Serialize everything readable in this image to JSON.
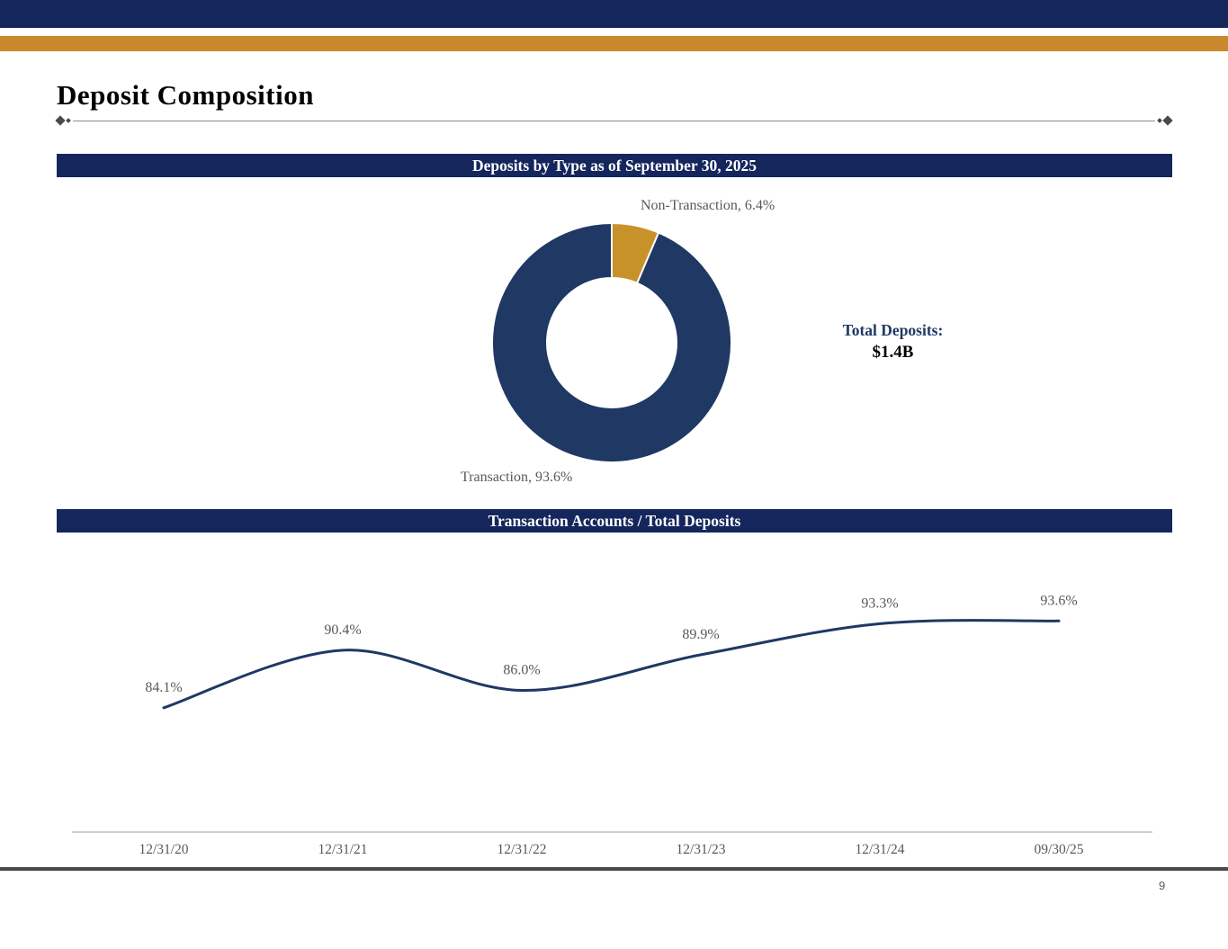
{
  "title": "Deposit Composition",
  "page": {
    "number": "9"
  },
  "sections": {
    "deposits_by_type_header": "Deposits by Type as of September 30, 2025",
    "transaction_ratio_header": "Transaction Accounts / Total Deposits"
  },
  "total_deposits": {
    "label": "Total Deposits:",
    "value": "$1.4B"
  },
  "colors": {
    "navy_bar": "#14265c",
    "gold_bar": "#c8882b",
    "donut_navy": "#1f3864",
    "donut_gold": "#c8922b",
    "line_navy": "#1f3864",
    "label_gray": "#595959",
    "axis_gray": "#b0b0b0",
    "divider_gray": "#4a4a4a"
  },
  "chart_data": [
    {
      "type": "pie",
      "subtype": "donut",
      "title": "Deposits by Type as of September 30, 2025",
      "slices": [
        {
          "label": "Non-Transaction",
          "value": 6.4,
          "color": "#c8922b",
          "annotation": "Non-Transaction, 6.4%"
        },
        {
          "label": "Transaction",
          "value": 93.6,
          "color": "#1f3864",
          "annotation": "Transaction, 93.6%"
        }
      ],
      "center_text": {
        "label": "Total Deposits:",
        "value": "$1.4B"
      },
      "legend_position": "none"
    },
    {
      "type": "line",
      "title": "Transaction Accounts / Total Deposits",
      "categories": [
        "12/31/20",
        "12/31/21",
        "12/31/22",
        "12/31/23",
        "12/31/24",
        "09/30/25"
      ],
      "values": [
        84.1,
        90.4,
        86.0,
        89.9,
        93.3,
        93.6
      ],
      "point_labels": [
        "84.1%",
        "90.4%",
        "86.0%",
        "89.9%",
        "93.3%",
        "93.6%"
      ],
      "xlabel": "",
      "ylabel": "",
      "ylim": [
        70.5,
        102
      ],
      "grid": false,
      "legend_position": "none",
      "smoothed": true
    }
  ]
}
